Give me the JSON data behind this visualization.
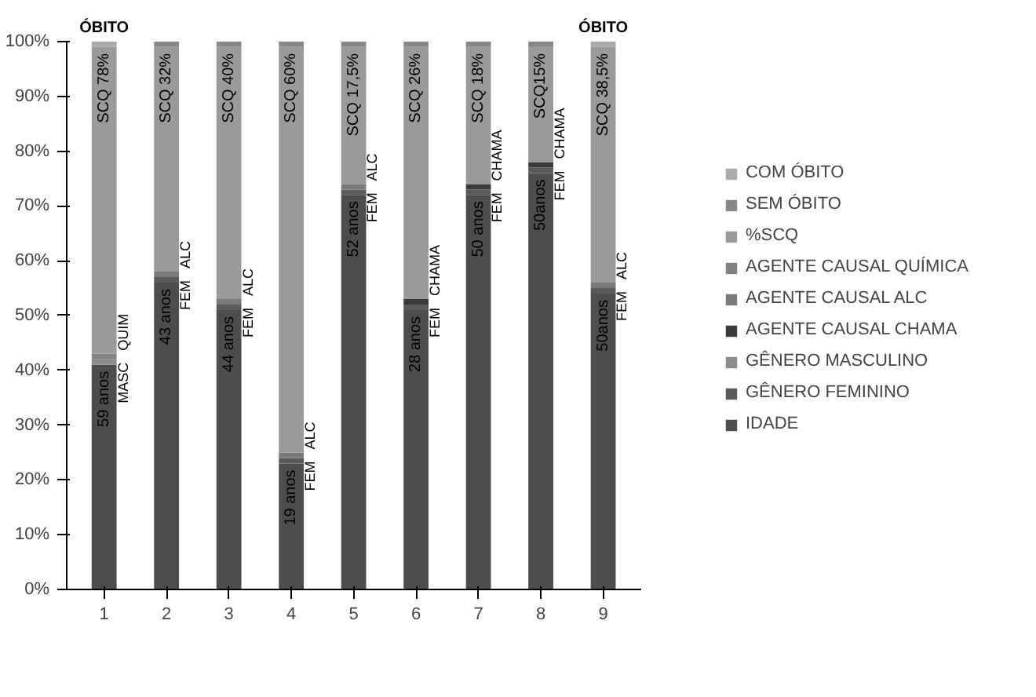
{
  "chart_data": {
    "type": "bar",
    "stacked": true,
    "categories": [
      "1",
      "2",
      "3",
      "4",
      "5",
      "6",
      "7",
      "8",
      "9"
    ],
    "series": [
      {
        "name": "IDADE",
        "color": "#4d4d4d",
        "values": [
          41,
          56,
          51,
          23,
          72,
          51,
          72,
          76,
          54
        ]
      },
      {
        "name": "GÊNERO FEMININO",
        "color": "#5a5a5a",
        "values": [
          0,
          1,
          1,
          1,
          1,
          1,
          1,
          1,
          1
        ]
      },
      {
        "name": "GÊNERO MASCULINO",
        "color": "#8c8c8c",
        "values": [
          1,
          0,
          0,
          0,
          0,
          0,
          0,
          0,
          0
        ]
      },
      {
        "name": "AGENTE CAUSAL CHAMA",
        "color": "#3a3a3a",
        "values": [
          0,
          0,
          0,
          0,
          0,
          1,
          1,
          1,
          0
        ]
      },
      {
        "name": "AGENTE CAUSAL ALC",
        "color": "#7a7a7a",
        "values": [
          0,
          1,
          1,
          1,
          1,
          0,
          0,
          0,
          1
        ]
      },
      {
        "name": "AGENTE CAUSAL QUÍMICA",
        "color": "#828282",
        "values": [
          1,
          0,
          0,
          0,
          0,
          0,
          0,
          0,
          0
        ]
      },
      {
        "name": "%SCQ",
        "color": "#9a9a9a",
        "values": [
          56,
          41,
          46,
          74,
          25,
          46,
          25,
          21,
          43
        ]
      },
      {
        "name": "SEM ÓBITO",
        "color": "#888888",
        "values": [
          0,
          1,
          1,
          1,
          1,
          1,
          1,
          1,
          0
        ]
      },
      {
        "name": "COM ÓBITO",
        "color": "#ababab",
        "values": [
          1,
          0,
          0,
          0,
          0,
          0,
          0,
          0,
          1
        ]
      }
    ],
    "ylim": [
      0,
      100
    ],
    "yticks": [
      {
        "value": 0,
        "label": "0%"
      },
      {
        "value": 10,
        "label": "10%"
      },
      {
        "value": 20,
        "label": "20%"
      },
      {
        "value": 30,
        "label": "30%"
      },
      {
        "value": 40,
        "label": "40%"
      },
      {
        "value": 50,
        "label": "50%"
      },
      {
        "value": 60,
        "label": "60%"
      },
      {
        "value": 70,
        "label": "70%"
      },
      {
        "value": 80,
        "label": "80%"
      },
      {
        "value": 90,
        "label": "90%"
      },
      {
        "value": 100,
        "label": "100%"
      }
    ],
    "grid": false,
    "legend": "right",
    "annotations": [
      {
        "text": "ÓBITO",
        "x": "1",
        "y": 100
      },
      {
        "text": "ÓBITO",
        "x": "9",
        "y": 100
      },
      {
        "text": "SCQ 78%",
        "x": "1",
        "y": 99
      },
      {
        "text": "QUIM",
        "x": "1",
        "y": 43
      },
      {
        "text": "MASC",
        "x": "1",
        "y": 42
      },
      {
        "text": "59 anos",
        "x": "1",
        "y": 41
      },
      {
        "text": "SCQ 32%",
        "x": "2",
        "y": 99
      },
      {
        "text": "ALC",
        "x": "2",
        "y": 58
      },
      {
        "text": "FEM",
        "x": "2",
        "y": 57
      },
      {
        "text": "43 anos",
        "x": "2",
        "y": 56
      },
      {
        "text": "SCQ 40%",
        "x": "3",
        "y": 99
      },
      {
        "text": "ALC",
        "x": "3",
        "y": 53
      },
      {
        "text": "FEM",
        "x": "3",
        "y": 52
      },
      {
        "text": "44 anos",
        "x": "3",
        "y": 51
      },
      {
        "text": "SCQ 60%",
        "x": "4",
        "y": 99
      },
      {
        "text": "ALC",
        "x": "4",
        "y": 25
      },
      {
        "text": "FEM",
        "x": "4",
        "y": 24
      },
      {
        "text": "19 anos",
        "x": "4",
        "y": 23
      },
      {
        "text": "SCQ 17,5%",
        "x": "5",
        "y": 99
      },
      {
        "text": "ALC",
        "x": "5",
        "y": 74
      },
      {
        "text": "FEM",
        "x": "5",
        "y": 73
      },
      {
        "text": "52 anos",
        "x": "5",
        "y": 72
      },
      {
        "text": "SCQ 26%",
        "x": "6",
        "y": 99
      },
      {
        "text": "CHAMA",
        "x": "6",
        "y": 53
      },
      {
        "text": "FEM",
        "x": "6",
        "y": 52
      },
      {
        "text": "28 anos",
        "x": "6",
        "y": 51
      },
      {
        "text": "SCQ 18%",
        "x": "7",
        "y": 99
      },
      {
        "text": "CHAMA",
        "x": "7",
        "y": 74
      },
      {
        "text": "FEM",
        "x": "7",
        "y": 73
      },
      {
        "text": "50 anos",
        "x": "7",
        "y": 72
      },
      {
        "text": "SCQ15%",
        "x": "8",
        "y": 99
      },
      {
        "text": "CHAMA",
        "x": "8",
        "y": 78
      },
      {
        "text": "FEM",
        "x": "8",
        "y": 77
      },
      {
        "text": "50anos",
        "x": "8",
        "y": 76
      },
      {
        "text": "SCQ 38,5%",
        "x": "9",
        "y": 99
      },
      {
        "text": "ALC",
        "x": "9",
        "y": 56
      },
      {
        "text": "FEM",
        "x": "9",
        "y": 55
      },
      {
        "text": "50anos",
        "x": "9",
        "y": 54
      }
    ]
  }
}
